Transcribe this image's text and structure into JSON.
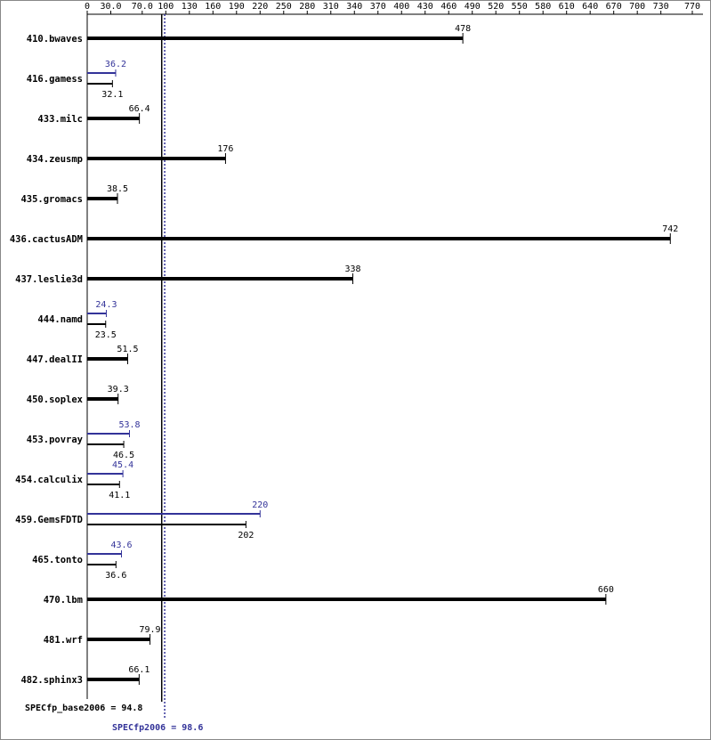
{
  "chart_data": {
    "type": "bar",
    "orientation": "horizontal",
    "categories": [
      "410.bwaves",
      "416.gamess",
      "433.milc",
      "434.zeusmp",
      "435.gromacs",
      "436.cactusADM",
      "437.leslie3d",
      "444.namd",
      "447.dealII",
      "450.soplex",
      "453.povray",
      "454.calculix",
      "459.GemsFDTD",
      "465.tonto",
      "470.lbm",
      "481.wrf",
      "482.sphinx3"
    ],
    "series": [
      {
        "color": "#000000",
        "values": [
          478,
          32.1,
          66.4,
          176,
          38.5,
          742,
          338,
          23.5,
          51.5,
          39.3,
          46.5,
          41.1,
          202,
          36.6,
          660,
          79.9,
          66.1
        ]
      },
      {
        "color": "#333399",
        "values": [
          478,
          36.2,
          66.4,
          176,
          38.5,
          742,
          338,
          24.3,
          51.5,
          39.3,
          53.8,
          45.4,
          220,
          43.6,
          660,
          79.9,
          66.1
        ]
      }
    ],
    "xlim": [
      0,
      770
    ],
    "xticks": [
      0,
      {
        "value": 30,
        "label": "30.0"
      },
      {
        "value": 70,
        "label": "70.0"
      },
      100,
      130,
      160,
      190,
      220,
      250,
      280,
      310,
      340,
      370,
      400,
      430,
      460,
      490,
      520,
      550,
      580,
      610,
      640,
      670,
      700,
      730,
      770
    ],
    "reference_lines": [
      {
        "label": "SPECfp_base2006 = 94.8",
        "value": 94.8,
        "color": "#000000"
      },
      {
        "label": "SPECfp2006 = 98.6",
        "value": 98.6,
        "color": "#333399"
      }
    ]
  }
}
